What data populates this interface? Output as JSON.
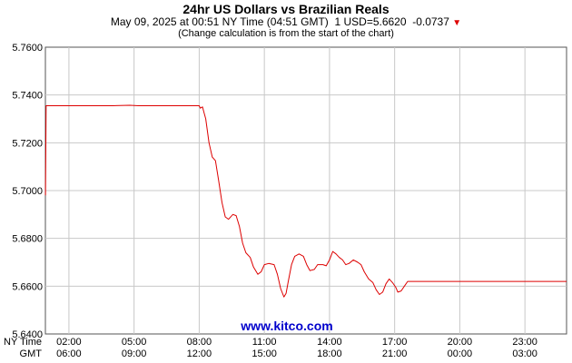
{
  "chart_data": {
    "type": "line",
    "title": "24hr US Dollars vs Brazilian Reals",
    "subtitle": {
      "date": "May 09, 2025",
      "ny_time": "00:51 NY Time",
      "gmt_time": "04:51 GMT",
      "rate": "1 USD=5.6620",
      "change": "-0.0737"
    },
    "note": "(Change calculation is from the start of the chart)",
    "watermark": "www.kitco.com",
    "row_labels": {
      "ny": "NY Time",
      "gmt": "GMT"
    },
    "ylim": [
      5.64,
      5.76
    ],
    "y_ticks": [
      "5.6400",
      "5.6600",
      "5.6800",
      "5.7000",
      "5.7200",
      "5.7400",
      "5.7600"
    ],
    "x_ticks_ny": [
      "02:00",
      "05:00",
      "08:00",
      "11:00",
      "14:00",
      "17:00",
      "20:00",
      "23:00"
    ],
    "x_ticks_gmt": [
      "06:00",
      "09:00",
      "12:00",
      "15:00",
      "18:00",
      "21:00",
      "00:00",
      "03:00"
    ],
    "xlim_hours": [
      0.9167,
      24.9167
    ],
    "x_tick_hours": [
      2,
      5,
      8,
      11,
      14,
      17,
      20,
      23
    ],
    "grid": true,
    "line_color": "#dd0000",
    "series": [
      {
        "values": [
          [
            0.92,
            5.698
          ],
          [
            0.95,
            5.7355
          ],
          [
            2.0,
            5.7355
          ],
          [
            4.0,
            5.7355
          ],
          [
            4.8,
            5.7357
          ],
          [
            5.2,
            5.7355
          ],
          [
            7.0,
            5.7355
          ],
          [
            8.0,
            5.7355
          ],
          [
            8.05,
            5.7345
          ],
          [
            8.15,
            5.735
          ],
          [
            8.3,
            5.73
          ],
          [
            8.45,
            5.72
          ],
          [
            8.6,
            5.714
          ],
          [
            8.75,
            5.7125
          ],
          [
            8.9,
            5.704
          ],
          [
            9.05,
            5.695
          ],
          [
            9.2,
            5.689
          ],
          [
            9.35,
            5.688
          ],
          [
            9.55,
            5.69
          ],
          [
            9.7,
            5.6895
          ],
          [
            9.85,
            5.685
          ],
          [
            10.0,
            5.678
          ],
          [
            10.15,
            5.674
          ],
          [
            10.35,
            5.672
          ],
          [
            10.5,
            5.668
          ],
          [
            10.7,
            5.665
          ],
          [
            10.85,
            5.666
          ],
          [
            11.0,
            5.669
          ],
          [
            11.2,
            5.6695
          ],
          [
            11.45,
            5.669
          ],
          [
            11.6,
            5.665
          ],
          [
            11.75,
            5.659
          ],
          [
            11.9,
            5.6555
          ],
          [
            12.0,
            5.657
          ],
          [
            12.1,
            5.662
          ],
          [
            12.25,
            5.669
          ],
          [
            12.4,
            5.6725
          ],
          [
            12.6,
            5.6735
          ],
          [
            12.8,
            5.6725
          ],
          [
            12.95,
            5.669
          ],
          [
            13.1,
            5.6665
          ],
          [
            13.3,
            5.667
          ],
          [
            13.45,
            5.669
          ],
          [
            13.7,
            5.669
          ],
          [
            13.85,
            5.6685
          ],
          [
            14.0,
            5.671
          ],
          [
            14.15,
            5.6745
          ],
          [
            14.3,
            5.6735
          ],
          [
            14.45,
            5.672
          ],
          [
            14.6,
            5.671
          ],
          [
            14.75,
            5.669
          ],
          [
            14.9,
            5.6695
          ],
          [
            15.1,
            5.671
          ],
          [
            15.3,
            5.67
          ],
          [
            15.45,
            5.669
          ],
          [
            15.6,
            5.666
          ],
          [
            15.8,
            5.663
          ],
          [
            16.0,
            5.6615
          ],
          [
            16.15,
            5.6585
          ],
          [
            16.3,
            5.6565
          ],
          [
            16.45,
            5.6575
          ],
          [
            16.6,
            5.661
          ],
          [
            16.75,
            5.663
          ],
          [
            16.9,
            5.6615
          ],
          [
            17.05,
            5.6595
          ],
          [
            17.15,
            5.6575
          ],
          [
            17.3,
            5.658
          ],
          [
            17.45,
            5.66
          ],
          [
            17.6,
            5.662
          ],
          [
            18.0,
            5.662
          ],
          [
            20.0,
            5.662
          ],
          [
            23.0,
            5.662
          ],
          [
            24.917,
            5.662
          ]
        ]
      }
    ]
  }
}
